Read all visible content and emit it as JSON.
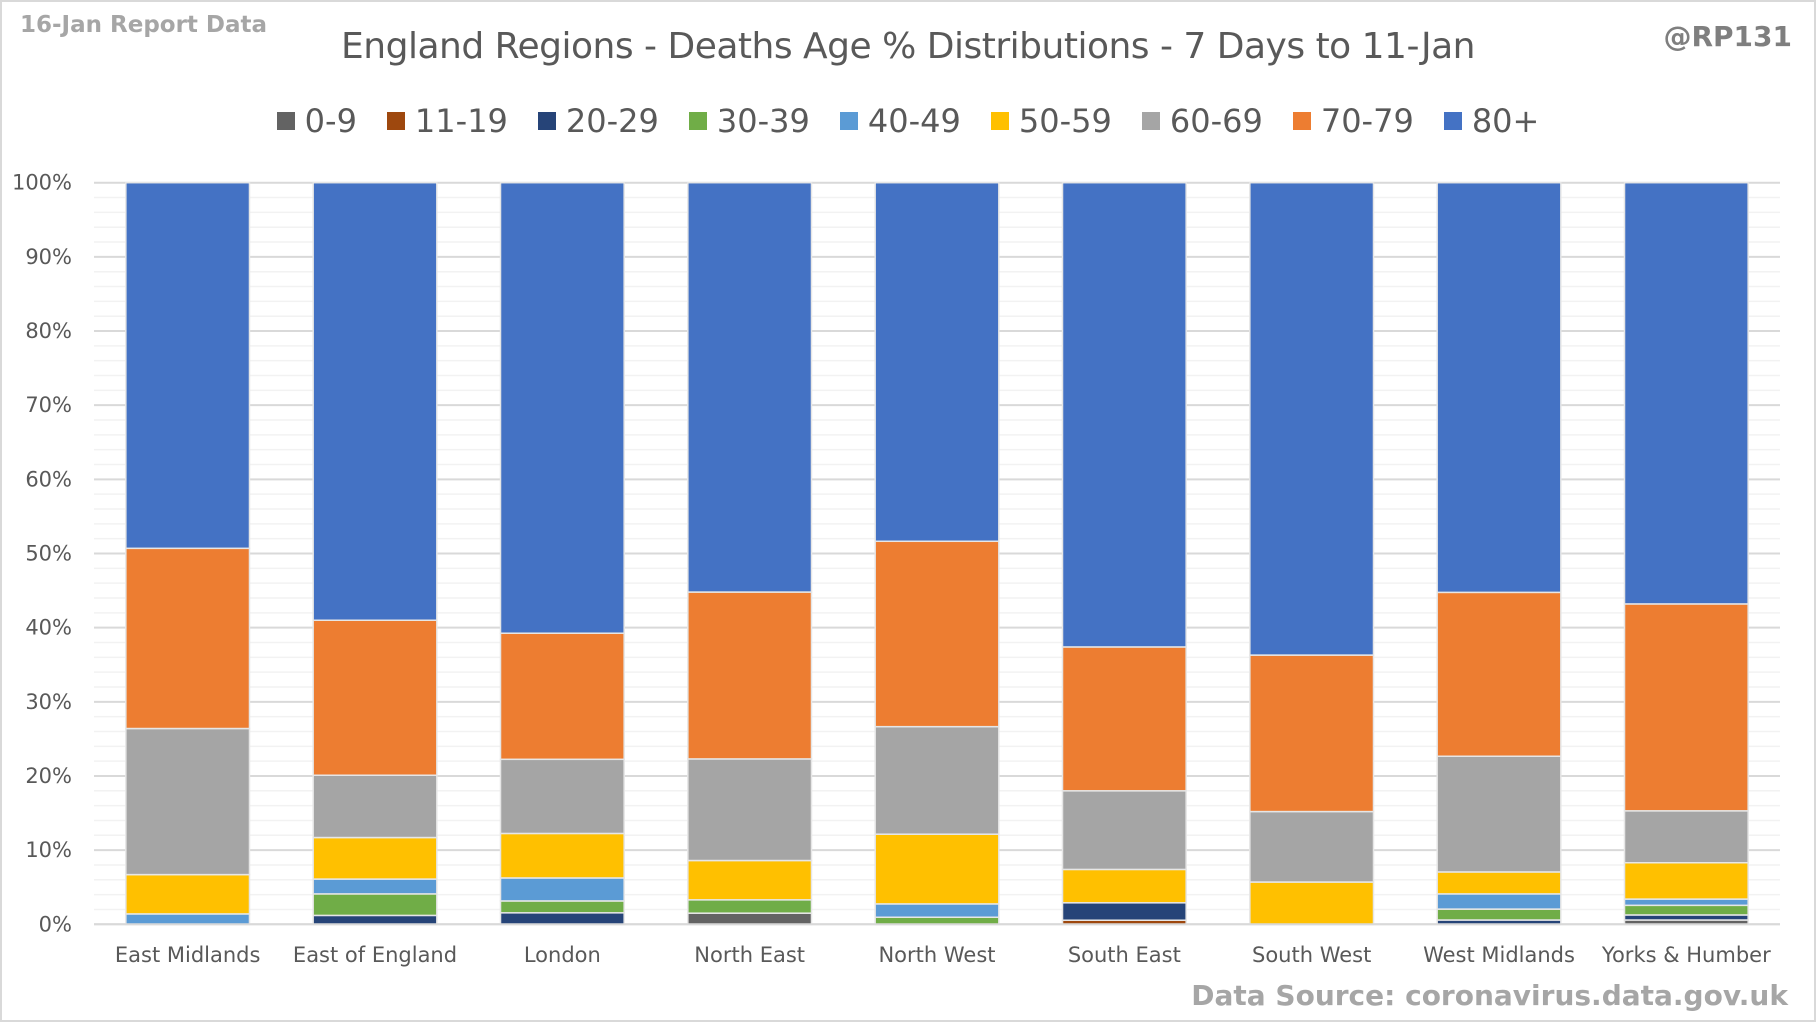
{
  "header": {
    "report_tag": "16-Jan Report Data",
    "handle": "@RP131"
  },
  "footer": {
    "source": "Data Source: coronavirus.data.gov.uk"
  },
  "chart_data": {
    "type": "bar",
    "stacked": true,
    "normalized": true,
    "title": "England Regions - Deaths Age % Distributions - 7 Days to 11-Jan",
    "xlabel": "",
    "ylabel": "",
    "ylim": [
      0,
      100
    ],
    "yticks": [
      "0%",
      "10%",
      "20%",
      "30%",
      "40%",
      "50%",
      "60%",
      "70%",
      "80%",
      "90%",
      "100%"
    ],
    "grid": true,
    "legend_position": "top",
    "categories": [
      "East Midlands",
      "East of England",
      "London",
      "North East",
      "North West",
      "South East",
      "South West",
      "West Midlands",
      "Yorks & Humber"
    ],
    "series": [
      {
        "name": "0-9",
        "color": "#636363",
        "values": [
          0,
          0,
          0,
          1.5,
          0,
          0,
          0,
          0,
          0.58
        ]
      },
      {
        "name": "11-19",
        "color": "#9e480e",
        "values": [
          0,
          0,
          0,
          0,
          0,
          0.55,
          0,
          0,
          0
        ]
      },
      {
        "name": "20-29",
        "color": "#264478",
        "values": [
          0,
          1.2,
          1.55,
          0,
          0,
          2.35,
          0,
          0.58,
          0.68
        ]
      },
      {
        "name": "30-39",
        "color": "#70ad47",
        "values": [
          0,
          2.9,
          1.6,
          1.8,
          0.95,
          0,
          0,
          1.47,
          1.3
        ]
      },
      {
        "name": "40-49",
        "color": "#5b9bd5",
        "values": [
          1.4,
          2.0,
          3.1,
          0,
          1.8,
          0,
          0,
          2.05,
          0.84
        ]
      },
      {
        "name": "50-59",
        "color": "#ffc000",
        "values": [
          5.3,
          5.6,
          6.0,
          5.3,
          9.4,
          4.5,
          5.7,
          2.96,
          4.9
        ]
      },
      {
        "name": "60-69",
        "color": "#a5a5a5",
        "values": [
          19.7,
          8.4,
          10.0,
          13.7,
          14.5,
          10.6,
          9.5,
          15.6,
          7.0
        ]
      },
      {
        "name": "70-79",
        "color": "#ed7d31",
        "values": [
          24.3,
          20.9,
          17.0,
          22.5,
          25.0,
          19.4,
          21.1,
          22.1,
          27.9
        ]
      },
      {
        "name": "80+",
        "color": "#4472c4",
        "values": [
          49.3,
          59.0,
          60.75,
          55.2,
          48.35,
          62.6,
          63.7,
          55.24,
          56.8
        ]
      }
    ]
  }
}
